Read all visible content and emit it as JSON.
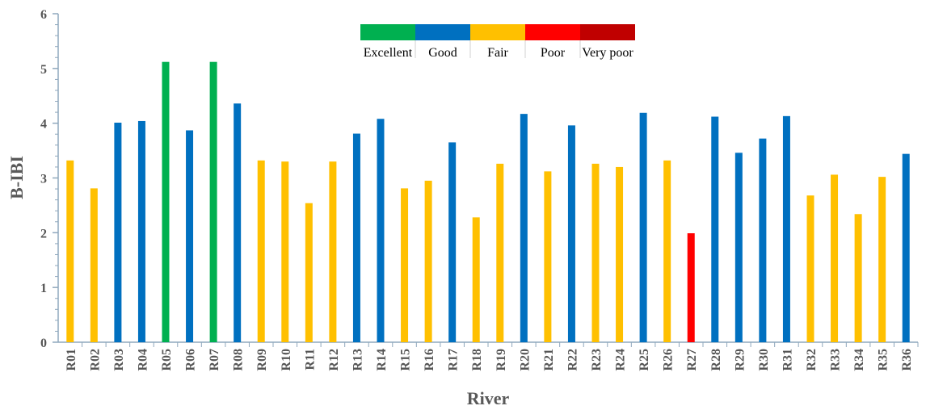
{
  "chart_data": {
    "type": "bar",
    "xlabel": "River",
    "ylabel": "B-IBI",
    "ylim": [
      0,
      6
    ],
    "yticks": [
      "0",
      "1",
      "2",
      "3",
      "4",
      "5",
      "6"
    ],
    "grid": false,
    "legend_position": "top-center",
    "legend": [
      {
        "label": "Excellent",
        "color": "#00b050"
      },
      {
        "label": "Good",
        "color": "#0070c0"
      },
      {
        "label": "Fair",
        "color": "#ffc000"
      },
      {
        "label": "Poor",
        "color": "#ff0000"
      },
      {
        "label": "Very poor",
        "color": "#c00000"
      }
    ],
    "categories": [
      "R01",
      "R02",
      "R03",
      "R04",
      "R05",
      "R06",
      "R07",
      "R08",
      "R09",
      "R10",
      "R11",
      "R12",
      "R13",
      "R14",
      "R15",
      "R16",
      "R17",
      "R18",
      "R19",
      "R20",
      "R21",
      "R22",
      "R23",
      "R24",
      "R25",
      "R26",
      "R27",
      "R28",
      "R29",
      "R30",
      "R31",
      "R32",
      "R33",
      "R34",
      "R35",
      "R36"
    ],
    "values": [
      3.32,
      2.81,
      4.01,
      4.04,
      5.12,
      3.87,
      5.12,
      4.36,
      3.32,
      3.3,
      2.54,
      3.3,
      3.81,
      4.08,
      2.81,
      2.95,
      3.65,
      2.28,
      3.26,
      4.17,
      3.12,
      3.96,
      3.26,
      3.2,
      4.19,
      3.32,
      1.99,
      4.12,
      3.46,
      3.72,
      4.13,
      2.68,
      3.06,
      2.34,
      3.02,
      3.44
    ],
    "classes": [
      "Fair",
      "Fair",
      "Good",
      "Good",
      "Excellent",
      "Good",
      "Excellent",
      "Good",
      "Fair",
      "Fair",
      "Fair",
      "Fair",
      "Good",
      "Good",
      "Fair",
      "Fair",
      "Good",
      "Fair",
      "Fair",
      "Good",
      "Fair",
      "Good",
      "Fair",
      "Fair",
      "Good",
      "Fair",
      "Poor",
      "Good",
      "Good",
      "Good",
      "Good",
      "Fair",
      "Fair",
      "Fair",
      "Fair",
      "Good"
    ]
  }
}
